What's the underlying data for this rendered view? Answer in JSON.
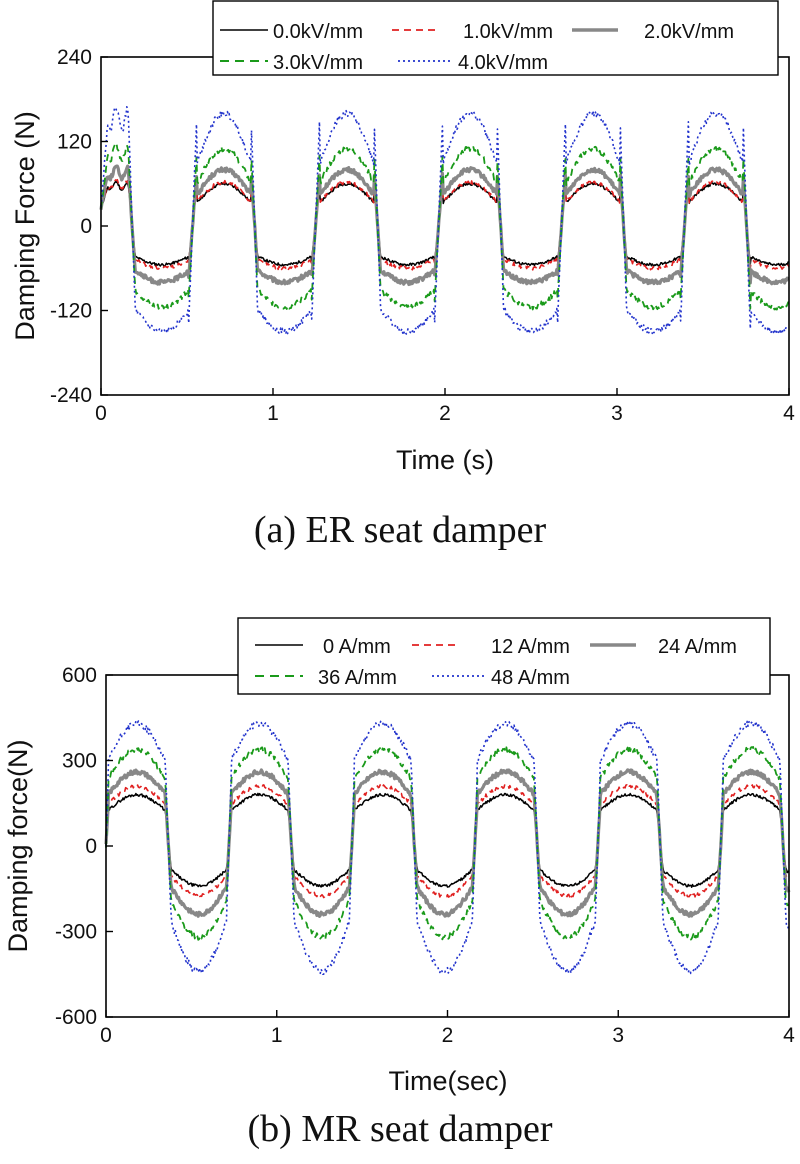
{
  "chart_data": [
    {
      "type": "line",
      "caption": "(a)  ER  seat  damper",
      "xlabel": "Time (s)",
      "ylabel": "Damping Force (N)",
      "xlim": [
        0,
        4
      ],
      "ylim": [
        -240,
        240
      ],
      "xticks": [
        0,
        1,
        2,
        3,
        4
      ],
      "yticks": [
        -240,
        -120,
        0,
        120,
        240
      ],
      "xtick_labels": [
        "0",
        "1",
        "2",
        "3",
        "4"
      ],
      "ytick_labels": [
        "-240",
        "-120",
        "0",
        "120",
        "240"
      ],
      "period": 0.715,
      "legend_position": "top-right",
      "series": [
        {
          "name": "0.0kV/mm",
          "color": "#000000",
          "dash": "solid",
          "stroke_width": 1.5,
          "amplitude_pos": 60,
          "amplitude_neg": -55
        },
        {
          "name": "1.0kV/mm",
          "color": "#e02020",
          "dash": "dashed",
          "stroke_width": 1.6,
          "amplitude_pos": 62,
          "amplitude_neg": -60
        },
        {
          "name": "2.0kV/mm",
          "color": "#888888",
          "dash": "solid",
          "stroke_width": 3.2,
          "amplitude_pos": 80,
          "amplitude_neg": -80
        },
        {
          "name": "3.0kV/mm",
          "color": "#1a9a1a",
          "dash": "dashed",
          "stroke_width": 1.8,
          "amplitude_pos": 110,
          "amplitude_neg": -115
        },
        {
          "name": "4.0kV/mm",
          "color": "#2233cc",
          "dash": "dotted",
          "stroke_width": 1.6,
          "amplitude_pos": 160,
          "amplitude_neg": -150
        }
      ]
    },
    {
      "type": "line",
      "caption": "(b)  MR  seat  damper",
      "xlabel": "Time(sec)",
      "ylabel": "Damping force(N)",
      "xlim": [
        0,
        4
      ],
      "ylim": [
        -600,
        600
      ],
      "xticks": [
        0,
        1,
        2,
        3,
        4
      ],
      "yticks": [
        -600,
        -300,
        0,
        300,
        600
      ],
      "xtick_labels": [
        "0",
        "1",
        "2",
        "3",
        "4"
      ],
      "ytick_labels": [
        "-600",
        "-300",
        "0",
        "300",
        "600"
      ],
      "period": 0.72,
      "legend_position": "top-right",
      "series": [
        {
          "name": "0 A/mm",
          "color": "#000000",
          "dash": "solid",
          "stroke_width": 1.5,
          "amplitude_pos": 180,
          "amplitude_neg": -140
        },
        {
          "name": "12 A/mm",
          "color": "#e02020",
          "dash": "dashed",
          "stroke_width": 1.6,
          "amplitude_pos": 210,
          "amplitude_neg": -175
        },
        {
          "name": "24 A/mm",
          "color": "#888888",
          "dash": "solid",
          "stroke_width": 3.2,
          "amplitude_pos": 260,
          "amplitude_neg": -240
        },
        {
          "name": "36 A/mm",
          "color": "#1a9a1a",
          "dash": "dashed",
          "stroke_width": 1.8,
          "amplitude_pos": 340,
          "amplitude_neg": -320
        },
        {
          "name": "48 A/mm",
          "color": "#2233cc",
          "dash": "dotted",
          "stroke_width": 1.6,
          "amplitude_pos": 430,
          "amplitude_neg": -440
        }
      ]
    }
  ]
}
